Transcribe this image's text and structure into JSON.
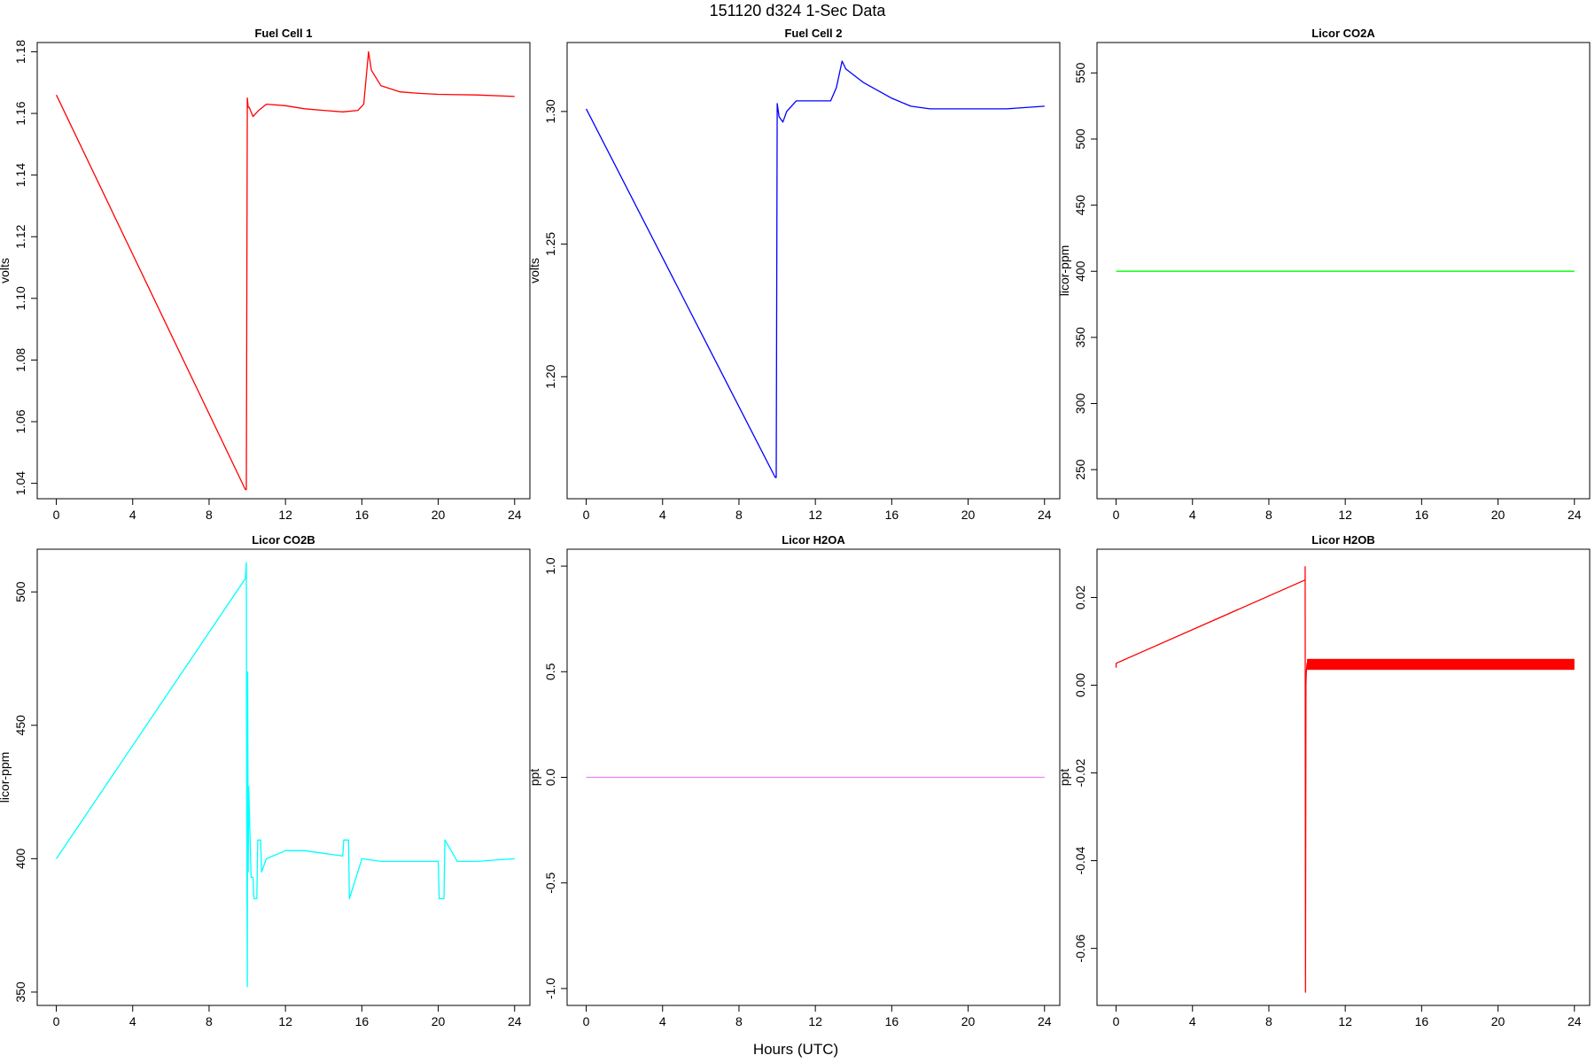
{
  "figure": {
    "title": "151120   d324   1-Sec Data",
    "xlabel": "Hours (UTC)"
  },
  "chart_data": [
    {
      "type": "line",
      "title": "Fuel Cell 1",
      "ylabel": "volts",
      "color": "#ff0000",
      "xlim": [
        -1,
        24.8
      ],
      "ylim": [
        1.035,
        1.183
      ],
      "xticks": [
        0,
        4,
        8,
        12,
        16,
        20,
        24
      ],
      "yticks": [
        1.04,
        1.06,
        1.08,
        1.1,
        1.12,
        1.14,
        1.16,
        1.18
      ],
      "ytick_labels": [
        "1.04",
        "1.06",
        "1.08",
        "1.10",
        "1.12",
        "1.14",
        "1.16",
        "1.18"
      ],
      "x": [
        0,
        9.9,
        9.95,
        10.0,
        10.05,
        10.1,
        10.3,
        10.6,
        11.0,
        12.0,
        13.0,
        14.0,
        15.0,
        15.8,
        16.1,
        16.35,
        16.5,
        17.0,
        18.0,
        19.0,
        20.0,
        22.0,
        24.0
      ],
      "y": [
        1.166,
        1.038,
        1.038,
        1.165,
        1.162,
        1.162,
        1.159,
        1.161,
        1.163,
        1.1625,
        1.1615,
        1.161,
        1.1605,
        1.161,
        1.163,
        1.18,
        1.174,
        1.169,
        1.167,
        1.1665,
        1.1662,
        1.166,
        1.1655
      ]
    },
    {
      "type": "line",
      "title": "Fuel Cell 2",
      "ylabel": "volts",
      "color": "#0000ff",
      "xlim": [
        -1,
        24.8
      ],
      "ylim": [
        1.154,
        1.326
      ],
      "xticks": [
        0,
        4,
        8,
        12,
        16,
        20,
        24
      ],
      "yticks": [
        1.2,
        1.25,
        1.3
      ],
      "ytick_labels": [
        "1.20",
        "1.25",
        "1.30"
      ],
      "x": [
        0,
        9.9,
        9.95,
        10.0,
        10.1,
        10.3,
        10.5,
        11.0,
        12.0,
        12.8,
        13.1,
        13.4,
        13.6,
        14.5,
        16.0,
        17.0,
        18.0,
        20.0,
        22.0,
        24.0
      ],
      "y": [
        1.301,
        1.162,
        1.162,
        1.303,
        1.298,
        1.296,
        1.3,
        1.304,
        1.304,
        1.304,
        1.309,
        1.319,
        1.316,
        1.311,
        1.305,
        1.302,
        1.301,
        1.301,
        1.301,
        1.302
      ]
    },
    {
      "type": "line",
      "title": "Licor CO2A",
      "ylabel": "licor-ppm",
      "color": "#00ff00",
      "xlim": [
        -1,
        24.8
      ],
      "ylim": [
        228,
        573
      ],
      "xticks": [
        0,
        4,
        8,
        12,
        16,
        20,
        24
      ],
      "yticks": [
        250,
        300,
        350,
        400,
        450,
        500,
        550
      ],
      "ytick_labels": [
        "250",
        "300",
        "350",
        "400",
        "450",
        "500",
        "550"
      ],
      "x": [
        0,
        24
      ],
      "y": [
        400,
        400
      ]
    },
    {
      "type": "line",
      "title": "Licor CO2B",
      "ylabel": "licor-ppm",
      "color": "#00ffff",
      "xlim": [
        -1,
        24.8
      ],
      "ylim": [
        345,
        516
      ],
      "xticks": [
        0,
        4,
        8,
        12,
        16,
        20,
        24
      ],
      "yticks": [
        350,
        400,
        450,
        500
      ],
      "ytick_labels": [
        "350",
        "400",
        "450",
        "500"
      ],
      "x": [
        0,
        9.9,
        9.95,
        9.97,
        10.0,
        10.02,
        10.05,
        10.08,
        10.12,
        10.2,
        10.3,
        10.35,
        10.5,
        10.55,
        10.7,
        10.75,
        11.0,
        12.0,
        13.0,
        14.0,
        15.0,
        15.05,
        15.3,
        15.35,
        16.0,
        17.0,
        18.0,
        19.0,
        20.0,
        20.05,
        20.3,
        20.35,
        21.0,
        22.0,
        24.0
      ],
      "y": [
        400,
        505,
        511,
        420,
        352,
        470,
        395,
        427,
        415,
        393,
        393,
        385,
        385,
        407,
        407,
        395,
        400,
        403,
        403,
        402,
        401,
        407,
        407,
        385,
        400,
        399,
        399,
        399,
        399,
        385,
        385,
        407,
        399,
        399,
        400
      ]
    },
    {
      "type": "line",
      "title": "Licor H2OA",
      "ylabel": "ppt",
      "color": "#ee82ee",
      "xlim": [
        -1,
        24.8
      ],
      "ylim": [
        -1.08,
        1.08
      ],
      "xticks": [
        0,
        4,
        8,
        12,
        16,
        20,
        24
      ],
      "yticks": [
        -1.0,
        -0.5,
        0.0,
        0.5,
        1.0
      ],
      "ytick_labels": [
        "-1.0",
        "-0.5",
        "0.0",
        "0.5",
        "1.0"
      ],
      "x": [
        0,
        24
      ],
      "y": [
        0.0,
        0.0
      ]
    },
    {
      "type": "line",
      "title": "Licor H2OB",
      "ylabel": "ppt",
      "color": "#ff0000",
      "xlim": [
        -1,
        24.8
      ],
      "ylim": [
        -0.073,
        0.031
      ],
      "xticks": [
        0,
        4,
        8,
        12,
        16,
        20,
        24
      ],
      "yticks": [
        -0.06,
        -0.04,
        -0.02,
        0.0,
        0.02
      ],
      "ytick_labels": [
        "-0.06",
        "-0.04",
        "-0.02",
        "0.00",
        "0.02"
      ],
      "x": [
        0,
        0,
        9.9,
        9.9,
        9.92,
        9.94,
        9.96,
        10.0,
        10.2,
        12.0,
        16.0,
        20.0,
        24.0
      ],
      "y": [
        0.004,
        0.005,
        0.024,
        0.027,
        -0.07,
        0.0,
        0.003,
        0.005,
        0.005,
        0.005,
        0.005,
        0.005,
        0.005
      ],
      "band": {
        "x_start": 10.0,
        "x_end": 24.0,
        "low": 0.0035,
        "high": 0.006
      }
    }
  ]
}
